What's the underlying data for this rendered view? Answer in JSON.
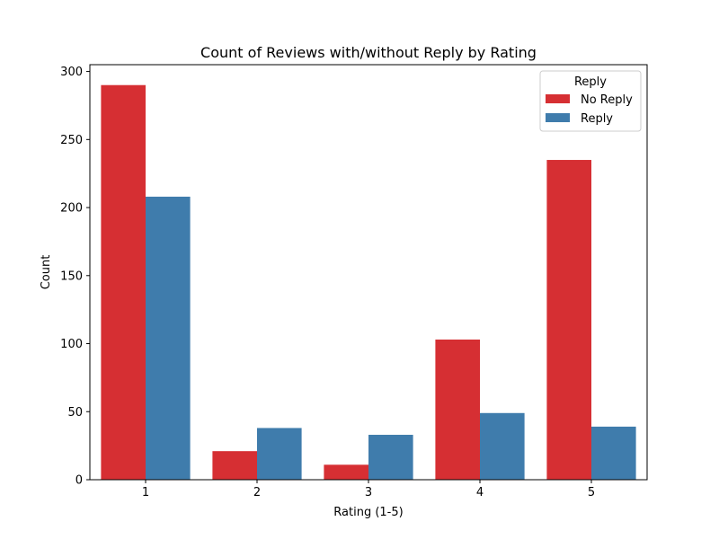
{
  "chart_data": {
    "type": "bar",
    "title": "Count of Reviews with/without Reply by Rating",
    "xlabel": "Rating (1-5)",
    "ylabel": "Count",
    "categories": [
      "1",
      "2",
      "3",
      "4",
      "5"
    ],
    "ylim": [
      0,
      305
    ],
    "yticks": [
      0,
      50,
      100,
      150,
      200,
      250,
      300
    ],
    "grid": false,
    "legend": {
      "title": "Reply",
      "placement": "top-right"
    },
    "series": [
      {
        "name": "No Reply",
        "color": "#d62f33",
        "values": [
          290,
          21,
          11,
          103,
          235
        ]
      },
      {
        "name": "Reply",
        "color": "#3f7cac",
        "values": [
          208,
          38,
          33,
          49,
          39
        ]
      }
    ]
  }
}
